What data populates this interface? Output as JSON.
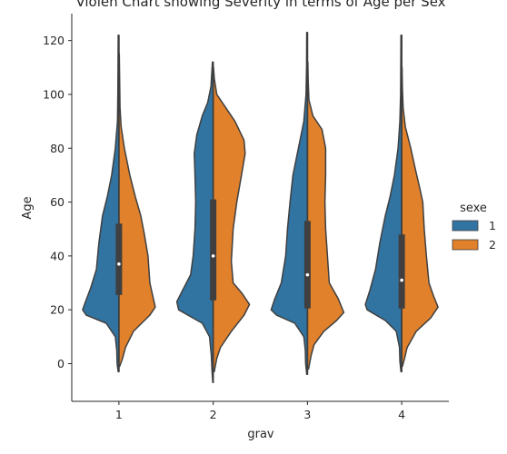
{
  "chart_data": {
    "type": "violin",
    "title": "Violen Chart showing Severity in terms of Age per Sex",
    "xlabel": "grav",
    "ylabel": "Age",
    "categories": [
      "1",
      "2",
      "3",
      "4"
    ],
    "ylim": [
      -14,
      130
    ],
    "yticks": [
      0,
      20,
      40,
      60,
      80,
      100,
      120
    ],
    "grid": false,
    "split": true,
    "legend": {
      "title": "sexe",
      "placement": "right",
      "entries": [
        {
          "label": "1",
          "color": "#3274a1"
        },
        {
          "label": "2",
          "color": "#e1812c"
        }
      ]
    },
    "series": [
      {
        "name": "1",
        "color": "#3274a1",
        "side": "left",
        "profiles": [
          [
            [
              -3,
              0.02
            ],
            [
              0,
              0.05
            ],
            [
              5,
              0.06
            ],
            [
              10,
              0.1
            ],
            [
              15,
              0.35
            ],
            [
              18,
              0.9
            ],
            [
              20,
              1.0
            ],
            [
              23,
              0.92
            ],
            [
              28,
              0.78
            ],
            [
              35,
              0.62
            ],
            [
              45,
              0.55
            ],
            [
              55,
              0.45
            ],
            [
              62,
              0.32
            ],
            [
              70,
              0.2
            ],
            [
              80,
              0.1
            ],
            [
              90,
              0.04
            ],
            [
              100,
              0.03
            ],
            [
              110,
              0.025
            ],
            [
              122,
              0.02
            ]
          ],
          [
            [
              -7,
              0.01
            ],
            [
              -3,
              0.03
            ],
            [
              3,
              0.05
            ],
            [
              10,
              0.1
            ],
            [
              15,
              0.3
            ],
            [
              20,
              0.95
            ],
            [
              23,
              1.0
            ],
            [
              27,
              0.85
            ],
            [
              33,
              0.62
            ],
            [
              40,
              0.55
            ],
            [
              50,
              0.5
            ],
            [
              60,
              0.48
            ],
            [
              70,
              0.5
            ],
            [
              78,
              0.52
            ],
            [
              85,
              0.45
            ],
            [
              92,
              0.3
            ],
            [
              97,
              0.15
            ],
            [
              103,
              0.06
            ],
            [
              112,
              0.02
            ]
          ],
          [
            [
              -4,
              0.02
            ],
            [
              0,
              0.05
            ],
            [
              5,
              0.06
            ],
            [
              10,
              0.1
            ],
            [
              15,
              0.35
            ],
            [
              18,
              0.85
            ],
            [
              20,
              1.0
            ],
            [
              24,
              0.9
            ],
            [
              30,
              0.72
            ],
            [
              40,
              0.6
            ],
            [
              50,
              0.55
            ],
            [
              60,
              0.48
            ],
            [
              70,
              0.4
            ],
            [
              80,
              0.25
            ],
            [
              90,
              0.1
            ],
            [
              100,
              0.04
            ],
            [
              110,
              0.025
            ],
            [
              123,
              0.02
            ]
          ],
          [
            [
              -3,
              0.02
            ],
            [
              1,
              0.05
            ],
            [
              6,
              0.06
            ],
            [
              12,
              0.15
            ],
            [
              16,
              0.45
            ],
            [
              20,
              0.95
            ],
            [
              22,
              1.0
            ],
            [
              27,
              0.88
            ],
            [
              35,
              0.72
            ],
            [
              45,
              0.6
            ],
            [
              55,
              0.45
            ],
            [
              62,
              0.32
            ],
            [
              70,
              0.2
            ],
            [
              80,
              0.1
            ],
            [
              90,
              0.05
            ],
            [
              100,
              0.03
            ],
            [
              110,
              0.025
            ],
            [
              122,
              0.02
            ]
          ]
        ]
      },
      {
        "name": "2",
        "color": "#e1812c",
        "side": "right",
        "profiles": [
          [
            [
              -1,
              0.02
            ],
            [
              2,
              0.1
            ],
            [
              6,
              0.18
            ],
            [
              12,
              0.4
            ],
            [
              18,
              0.85
            ],
            [
              21,
              1.0
            ],
            [
              24,
              0.95
            ],
            [
              30,
              0.85
            ],
            [
              40,
              0.8
            ],
            [
              48,
              0.7
            ],
            [
              55,
              0.6
            ],
            [
              62,
              0.45
            ],
            [
              70,
              0.3
            ],
            [
              80,
              0.15
            ],
            [
              88,
              0.06
            ],
            [
              95,
              0.03
            ],
            [
              105,
              0.02
            ],
            [
              115,
              0.01
            ]
          ],
          [
            [
              -3,
              0.03
            ],
            [
              2,
              0.1
            ],
            [
              6,
              0.2
            ],
            [
              12,
              0.5
            ],
            [
              18,
              0.85
            ],
            [
              22,
              1.0
            ],
            [
              26,
              0.8
            ],
            [
              30,
              0.55
            ],
            [
              38,
              0.5
            ],
            [
              50,
              0.55
            ],
            [
              60,
              0.65
            ],
            [
              70,
              0.78
            ],
            [
              78,
              0.88
            ],
            [
              83,
              0.85
            ],
            [
              90,
              0.6
            ],
            [
              96,
              0.3
            ],
            [
              100,
              0.1
            ],
            [
              106,
              0.03
            ],
            [
              110,
              0.01
            ]
          ],
          [
            [
              -2,
              0.03
            ],
            [
              3,
              0.1
            ],
            [
              7,
              0.18
            ],
            [
              12,
              0.45
            ],
            [
              16,
              0.8
            ],
            [
              19,
              1.0
            ],
            [
              24,
              0.85
            ],
            [
              30,
              0.6
            ],
            [
              40,
              0.55
            ],
            [
              50,
              0.5
            ],
            [
              60,
              0.48
            ],
            [
              70,
              0.5
            ],
            [
              80,
              0.5
            ],
            [
              87,
              0.4
            ],
            [
              92,
              0.15
            ],
            [
              98,
              0.04
            ],
            [
              105,
              0.02
            ],
            [
              112,
              0.01
            ]
          ],
          [
            [
              -1,
              0.02
            ],
            [
              2,
              0.08
            ],
            [
              6,
              0.15
            ],
            [
              12,
              0.4
            ],
            [
              17,
              0.8
            ],
            [
              21,
              1.0
            ],
            [
              25,
              0.88
            ],
            [
              30,
              0.75
            ],
            [
              40,
              0.68
            ],
            [
              50,
              0.62
            ],
            [
              60,
              0.58
            ],
            [
              65,
              0.5
            ],
            [
              72,
              0.38
            ],
            [
              80,
              0.25
            ],
            [
              88,
              0.1
            ],
            [
              95,
              0.04
            ],
            [
              102,
              0.02
            ],
            [
              110,
              0.01
            ]
          ]
        ]
      }
    ],
    "box": {
      "q1": [
        25.5,
        23.5,
        20.5,
        20.5
      ],
      "q3": [
        52,
        61,
        53,
        48
      ],
      "median": [
        37,
        40,
        33,
        31
      ],
      "whisker_low": [
        -3,
        -7,
        -4,
        -3
      ],
      "whisker_high": [
        122,
        112,
        123,
        122
      ]
    }
  }
}
